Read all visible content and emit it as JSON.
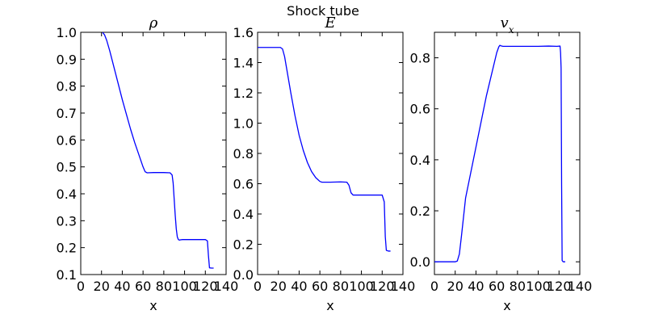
{
  "figure": {
    "suptitle": "Shock tube"
  },
  "chart_data": [
    {
      "type": "line",
      "title": "ρ",
      "xlabel": "x",
      "ylabel": "",
      "xlim": [
        0,
        140
      ],
      "ylim": [
        0.1,
        1.0
      ],
      "xticks": [
        0,
        20,
        40,
        60,
        80,
        100,
        120,
        140
      ],
      "xtick_labels": [
        "0",
        "20",
        "40",
        "60",
        "80",
        "100",
        "120",
        "140"
      ],
      "yticks": [
        0.1,
        0.2,
        0.3,
        0.4,
        0.5,
        0.6,
        0.7,
        0.8,
        0.9,
        1.0
      ],
      "ytick_labels": [
        "0.1",
        "0.2",
        "0.3",
        "0.4",
        "0.5",
        "0.6",
        "0.7",
        "0.8",
        "0.9",
        "1.0"
      ],
      "grid": false,
      "series": [
        {
          "color": "#0000ff",
          "x": [
            21,
            23,
            25,
            28,
            32,
            36,
            40,
            44,
            48,
            52,
            56,
            60,
            62,
            64,
            70,
            80,
            86,
            88,
            89,
            90,
            91,
            92,
            93,
            94,
            95,
            96,
            98,
            100,
            110,
            120,
            122,
            123,
            124,
            126,
            128
          ],
          "y": [
            1.0,
            0.99,
            0.97,
            0.93,
            0.87,
            0.81,
            0.75,
            0.695,
            0.64,
            0.59,
            0.545,
            0.5,
            0.482,
            0.478,
            0.479,
            0.479,
            0.478,
            0.47,
            0.44,
            0.38,
            0.32,
            0.27,
            0.24,
            0.23,
            0.228,
            0.229,
            0.23,
            0.23,
            0.23,
            0.23,
            0.225,
            0.17,
            0.125,
            0.124,
            0.124
          ]
        }
      ]
    },
    {
      "type": "line",
      "title": "E",
      "xlabel": "x",
      "ylabel": "",
      "xlim": [
        0,
        140
      ],
      "ylim": [
        0.0,
        1.6
      ],
      "xticks": [
        0,
        20,
        40,
        60,
        80,
        100,
        120,
        140
      ],
      "xtick_labels": [
        "0",
        "20",
        "40",
        "60",
        "80",
        "100",
        "120",
        "140"
      ],
      "yticks": [
        0.0,
        0.2,
        0.4,
        0.6,
        0.8,
        1.0,
        1.2,
        1.4,
        1.6
      ],
      "ytick_labels": [
        "0.0",
        "0.2",
        "0.4",
        "0.6",
        "0.8",
        "1.0",
        "1.2",
        "1.4",
        "1.6"
      ],
      "grid": false,
      "series": [
        {
          "color": "#0000ff",
          "x": [
            0,
            20,
            22,
            24,
            26,
            28,
            32,
            36,
            40,
            44,
            48,
            52,
            56,
            60,
            62,
            64,
            70,
            80,
            86,
            88,
            90,
            92,
            100,
            110,
            120,
            122,
            123,
            124,
            126,
            128
          ],
          "y": [
            1.5,
            1.5,
            1.5,
            1.49,
            1.44,
            1.36,
            1.2,
            1.05,
            0.92,
            0.82,
            0.74,
            0.68,
            0.64,
            0.615,
            0.61,
            0.61,
            0.61,
            0.612,
            0.61,
            0.59,
            0.54,
            0.525,
            0.525,
            0.525,
            0.525,
            0.48,
            0.25,
            0.16,
            0.155,
            0.155
          ]
        }
      ]
    },
    {
      "type": "line",
      "title": "vx",
      "xlabel": "x",
      "ylabel": "",
      "xlim": [
        0,
        140
      ],
      "ylim": [
        -0.05,
        0.9
      ],
      "xticks": [
        0,
        20,
        40,
        60,
        80,
        100,
        120,
        140
      ],
      "xtick_labels": [
        "0",
        "20",
        "40",
        "60",
        "80",
        "100",
        "120",
        "140"
      ],
      "yticks": [
        0.0,
        0.2,
        0.4,
        0.6,
        0.8
      ],
      "ytick_labels": [
        "0.0",
        "0.2",
        "0.4",
        "0.6",
        "0.8"
      ],
      "grid": false,
      "series": [
        {
          "color": "#0000ff",
          "x": [
            0,
            20,
            22,
            24,
            26,
            30,
            40,
            50,
            60,
            62,
            63,
            64,
            66,
            70,
            80,
            90,
            100,
            110,
            118,
            121,
            121.5,
            122,
            122.5,
            123,
            124,
            126
          ],
          "y": [
            0.0,
            0.0,
            0.003,
            0.03,
            0.1,
            0.25,
            0.45,
            0.65,
            0.82,
            0.843,
            0.849,
            0.847,
            0.845,
            0.845,
            0.845,
            0.845,
            0.845,
            0.846,
            0.845,
            0.846,
            0.82,
            0.76,
            0.3,
            0.005,
            0.0,
            0.0
          ]
        }
      ]
    }
  ]
}
